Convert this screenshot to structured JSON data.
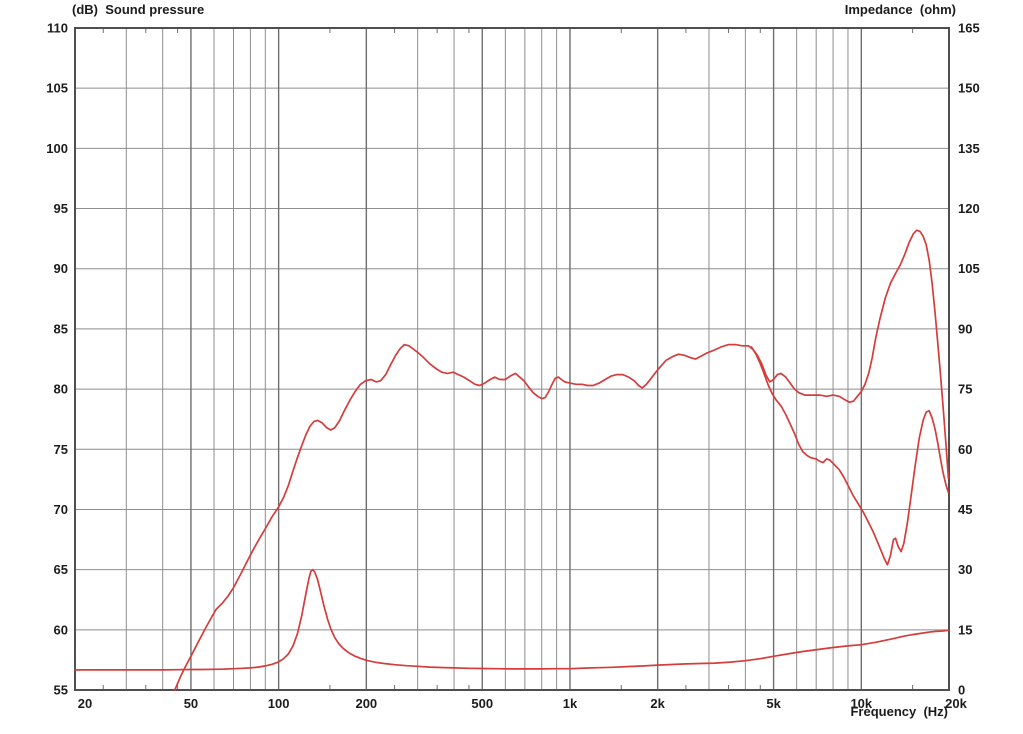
{
  "chart_data": {
    "type": "line",
    "title": "",
    "x_axis": {
      "label": "Frequency  (Hz)",
      "scale": "log",
      "min_hz": 20,
      "max_hz": 20000,
      "tick_labels": [
        "20",
        "50",
        "100",
        "200",
        "500",
        "1k",
        "2k",
        "5k",
        "10k",
        "20k"
      ],
      "tick_values_hz": [
        20,
        50,
        100,
        200,
        500,
        1000,
        2000,
        5000,
        10000,
        20000
      ],
      "minor_gridlines_hz": [
        30,
        40,
        60,
        70,
        80,
        90,
        300,
        400,
        600,
        700,
        800,
        900,
        3000,
        4000,
        6000,
        7000,
        8000,
        9000
      ],
      "minor_ticks_hz": [
        25,
        35,
        45,
        150,
        250,
        350,
        450,
        1500,
        2500,
        3500,
        4500,
        15000
      ]
    },
    "y_left": {
      "label": "(dB)  Sound pressure",
      "unit": "dB",
      "min": 55,
      "max": 110,
      "step": 5
    },
    "y_right": {
      "label": "Impedance  (ohm)",
      "unit": "ohm",
      "min": 0,
      "max": 165,
      "step": 15
    },
    "grid": true,
    "legend": "none",
    "series": [
      {
        "name": "sound-pressure-on-axis",
        "axis": "left",
        "unit": "dB",
        "points": [
          [
            44,
            55.0
          ],
          [
            46,
            56.1
          ],
          [
            48,
            57.0
          ],
          [
            50,
            57.8
          ],
          [
            53,
            59.0
          ],
          [
            56,
            60.1
          ],
          [
            59,
            61.1
          ],
          [
            61,
            61.7
          ],
          [
            64,
            62.2
          ],
          [
            67,
            62.8
          ],
          [
            70,
            63.5
          ],
          [
            74,
            64.6
          ],
          [
            78,
            65.7
          ],
          [
            82,
            66.7
          ],
          [
            86,
            67.6
          ],
          [
            90,
            68.4
          ],
          [
            95,
            69.4
          ],
          [
            100,
            70.2
          ],
          [
            104,
            71.0
          ],
          [
            108,
            72.0
          ],
          [
            112,
            73.2
          ],
          [
            116,
            74.3
          ],
          [
            120,
            75.3
          ],
          [
            124,
            76.2
          ],
          [
            128,
            76.9
          ],
          [
            132,
            77.3
          ],
          [
            136,
            77.4
          ],
          [
            141,
            77.2
          ],
          [
            146,
            76.8
          ],
          [
            151,
            76.6
          ],
          [
            156,
            76.8
          ],
          [
            162,
            77.4
          ],
          [
            168,
            78.2
          ],
          [
            175,
            79.0
          ],
          [
            183,
            79.8
          ],
          [
            191,
            80.4
          ],
          [
            199,
            80.7
          ],
          [
            208,
            80.8
          ],
          [
            216,
            80.6
          ],
          [
            224,
            80.7
          ],
          [
            233,
            81.2
          ],
          [
            242,
            82.0
          ],
          [
            252,
            82.8
          ],
          [
            262,
            83.4
          ],
          [
            270,
            83.7
          ],
          [
            280,
            83.6
          ],
          [
            291,
            83.3
          ],
          [
            302,
            83.0
          ],
          [
            315,
            82.6
          ],
          [
            330,
            82.1
          ],
          [
            347,
            81.7
          ],
          [
            363,
            81.4
          ],
          [
            380,
            81.3
          ],
          [
            397,
            81.4
          ],
          [
            414,
            81.2
          ],
          [
            432,
            81.0
          ],
          [
            452,
            80.7
          ],
          [
            472,
            80.4
          ],
          [
            490,
            80.3
          ],
          [
            510,
            80.5
          ],
          [
            532,
            80.8
          ],
          [
            552,
            81.0
          ],
          [
            575,
            80.8
          ],
          [
            600,
            80.8
          ],
          [
            625,
            81.1
          ],
          [
            650,
            81.3
          ],
          [
            672,
            81.0
          ],
          [
            695,
            80.7
          ],
          [
            720,
            80.2
          ],
          [
            748,
            79.7
          ],
          [
            775,
            79.4
          ],
          [
            800,
            79.2
          ],
          [
            822,
            79.3
          ],
          [
            845,
            79.8
          ],
          [
            868,
            80.4
          ],
          [
            890,
            80.9
          ],
          [
            912,
            81.0
          ],
          [
            935,
            80.8
          ],
          [
            960,
            80.6
          ],
          [
            1000,
            80.5
          ],
          [
            1050,
            80.4
          ],
          [
            1100,
            80.4
          ],
          [
            1150,
            80.3
          ],
          [
            1200,
            80.3
          ],
          [
            1260,
            80.5
          ],
          [
            1320,
            80.8
          ],
          [
            1390,
            81.1
          ],
          [
            1450,
            81.2
          ],
          [
            1520,
            81.2
          ],
          [
            1590,
            81.0
          ],
          [
            1660,
            80.7
          ],
          [
            1720,
            80.3
          ],
          [
            1770,
            80.1
          ],
          [
            1830,
            80.4
          ],
          [
            1900,
            80.9
          ],
          [
            1970,
            81.4
          ],
          [
            2050,
            81.9
          ],
          [
            2140,
            82.4
          ],
          [
            2250,
            82.7
          ],
          [
            2360,
            82.9
          ],
          [
            2480,
            82.8
          ],
          [
            2600,
            82.6
          ],
          [
            2700,
            82.5
          ],
          [
            2800,
            82.7
          ],
          [
            2950,
            83.0
          ],
          [
            3100,
            83.2
          ],
          [
            3300,
            83.5
          ],
          [
            3500,
            83.7
          ],
          [
            3700,
            83.7
          ],
          [
            3900,
            83.6
          ],
          [
            4100,
            83.6
          ],
          [
            4250,
            83.3
          ],
          [
            4400,
            82.8
          ],
          [
            4550,
            82.1
          ],
          [
            4700,
            81.2
          ],
          [
            4850,
            80.6
          ],
          [
            5000,
            80.8
          ],
          [
            5150,
            81.2
          ],
          [
            5300,
            81.3
          ],
          [
            5500,
            81.0
          ],
          [
            5700,
            80.5
          ],
          [
            5900,
            80.0
          ],
          [
            6100,
            79.7
          ],
          [
            6400,
            79.5
          ],
          [
            6800,
            79.5
          ],
          [
            7200,
            79.5
          ],
          [
            7600,
            79.4
          ],
          [
            8000,
            79.5
          ],
          [
            8400,
            79.4
          ],
          [
            8800,
            79.1
          ],
          [
            9100,
            78.9
          ],
          [
            9400,
            79.0
          ],
          [
            9700,
            79.4
          ],
          [
            10000,
            79.8
          ],
          [
            10300,
            80.4
          ],
          [
            10600,
            81.3
          ],
          [
            10900,
            82.6
          ],
          [
            11200,
            84.2
          ],
          [
            11600,
            85.9
          ],
          [
            12100,
            87.6
          ],
          [
            12600,
            88.8
          ],
          [
            13100,
            89.6
          ],
          [
            13600,
            90.3
          ],
          [
            14100,
            91.2
          ],
          [
            14600,
            92.2
          ],
          [
            15100,
            92.9
          ],
          [
            15500,
            93.2
          ],
          [
            15900,
            93.1
          ],
          [
            16300,
            92.7
          ],
          [
            16700,
            92.0
          ],
          [
            17100,
            90.7
          ],
          [
            17500,
            88.8
          ],
          [
            17900,
            86.4
          ],
          [
            18300,
            83.8
          ],
          [
            18700,
            81.2
          ],
          [
            19100,
            78.4
          ],
          [
            19500,
            75.6
          ],
          [
            19900,
            72.6
          ]
        ]
      },
      {
        "name": "sound-pressure-off-axis",
        "axis": "left",
        "unit": "dB",
        "points": [
          [
            4200,
            83.5
          ],
          [
            4350,
            82.9
          ],
          [
            4500,
            82.1
          ],
          [
            4650,
            81.2
          ],
          [
            4800,
            80.3
          ],
          [
            4950,
            79.6
          ],
          [
            5100,
            79.1
          ],
          [
            5300,
            78.6
          ],
          [
            5500,
            77.9
          ],
          [
            5700,
            77.1
          ],
          [
            5900,
            76.3
          ],
          [
            6100,
            75.4
          ],
          [
            6300,
            74.8
          ],
          [
            6500,
            74.5
          ],
          [
            6700,
            74.3
          ],
          [
            7000,
            74.2
          ],
          [
            7200,
            74.0
          ],
          [
            7400,
            73.9
          ],
          [
            7600,
            74.2
          ],
          [
            7800,
            74.1
          ],
          [
            8100,
            73.7
          ],
          [
            8400,
            73.3
          ],
          [
            8700,
            72.7
          ],
          [
            9000,
            72.0
          ],
          [
            9400,
            71.1
          ],
          [
            9800,
            70.4
          ],
          [
            10200,
            69.7
          ],
          [
            10600,
            68.9
          ],
          [
            11000,
            68.1
          ],
          [
            11500,
            67.0
          ],
          [
            12000,
            65.9
          ],
          [
            12300,
            65.4
          ],
          [
            12600,
            66.2
          ],
          [
            12900,
            67.5
          ],
          [
            13100,
            67.6
          ],
          [
            13400,
            66.9
          ],
          [
            13700,
            66.5
          ],
          [
            14000,
            67.2
          ],
          [
            14400,
            68.9
          ],
          [
            14800,
            71.0
          ],
          [
            15300,
            73.6
          ],
          [
            15800,
            75.9
          ],
          [
            16300,
            77.4
          ],
          [
            16700,
            78.1
          ],
          [
            17100,
            78.2
          ],
          [
            17500,
            77.6
          ],
          [
            17900,
            76.7
          ],
          [
            18300,
            75.5
          ],
          [
            18700,
            74.2
          ],
          [
            19100,
            73.0
          ],
          [
            19500,
            72.1
          ],
          [
            19900,
            71.4
          ]
        ]
      },
      {
        "name": "impedance",
        "axis": "right",
        "unit": "ohm",
        "points": [
          [
            20,
            5.0
          ],
          [
            25,
            5.0
          ],
          [
            30,
            5.0
          ],
          [
            35,
            5.0
          ],
          [
            40,
            5.0
          ],
          [
            45,
            5.05
          ],
          [
            50,
            5.1
          ],
          [
            55,
            5.1
          ],
          [
            60,
            5.15
          ],
          [
            65,
            5.2
          ],
          [
            70,
            5.3
          ],
          [
            75,
            5.4
          ],
          [
            80,
            5.5
          ],
          [
            85,
            5.7
          ],
          [
            90,
            6.0
          ],
          [
            95,
            6.4
          ],
          [
            100,
            7.0
          ],
          [
            104,
            7.8
          ],
          [
            108,
            9.0
          ],
          [
            112,
            11.0
          ],
          [
            116,
            14.0
          ],
          [
            120,
            18.5
          ],
          [
            124,
            24.0
          ],
          [
            127,
            27.8
          ],
          [
            129,
            29.6
          ],
          [
            131,
            30.0
          ],
          [
            133,
            29.4
          ],
          [
            136,
            27.6
          ],
          [
            139,
            24.8
          ],
          [
            143,
            21.0
          ],
          [
            147,
            17.8
          ],
          [
            151,
            15.2
          ],
          [
            156,
            13.0
          ],
          [
            161,
            11.5
          ],
          [
            167,
            10.3
          ],
          [
            174,
            9.3
          ],
          [
            182,
            8.5
          ],
          [
            191,
            7.9
          ],
          [
            200,
            7.4
          ],
          [
            215,
            6.9
          ],
          [
            230,
            6.6
          ],
          [
            250,
            6.3
          ],
          [
            275,
            6.05
          ],
          [
            300,
            5.9
          ],
          [
            330,
            5.7
          ],
          [
            360,
            5.6
          ],
          [
            400,
            5.5
          ],
          [
            450,
            5.4
          ],
          [
            500,
            5.35
          ],
          [
            560,
            5.3
          ],
          [
            630,
            5.25
          ],
          [
            700,
            5.25
          ],
          [
            800,
            5.25
          ],
          [
            900,
            5.3
          ],
          [
            1000,
            5.3
          ],
          [
            1120,
            5.45
          ],
          [
            1250,
            5.55
          ],
          [
            1400,
            5.65
          ],
          [
            1600,
            5.85
          ],
          [
            1800,
            6.0
          ],
          [
            2000,
            6.2
          ],
          [
            2240,
            6.35
          ],
          [
            2500,
            6.5
          ],
          [
            2800,
            6.6
          ],
          [
            3150,
            6.7
          ],
          [
            3550,
            6.95
          ],
          [
            4000,
            7.3
          ],
          [
            4500,
            7.8
          ],
          [
            5000,
            8.4
          ],
          [
            5600,
            9.0
          ],
          [
            6300,
            9.6
          ],
          [
            7100,
            10.1
          ],
          [
            8000,
            10.6
          ],
          [
            9000,
            11.0
          ],
          [
            10000,
            11.3
          ],
          [
            11200,
            11.9
          ],
          [
            12500,
            12.6
          ],
          [
            14000,
            13.4
          ],
          [
            15000,
            13.8
          ],
          [
            16000,
            14.1
          ],
          [
            17000,
            14.4
          ],
          [
            18000,
            14.6
          ],
          [
            19000,
            14.7
          ],
          [
            20000,
            14.9
          ]
        ]
      }
    ]
  },
  "colors": {
    "curve_red": "#d53c3c",
    "grid_minor": "#8e8e8e",
    "grid_major": "#6e6e6e",
    "frame": "#4f4f4f",
    "text": "#1c1c1c",
    "background": "#ffffff"
  }
}
